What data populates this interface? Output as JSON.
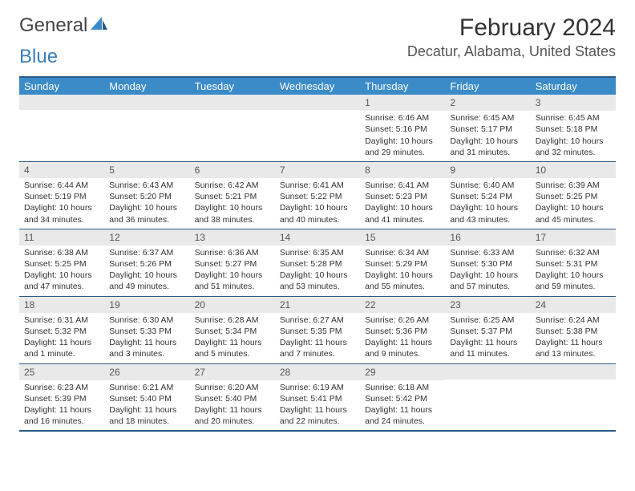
{
  "logo": {
    "text1": "General",
    "text2": "Blue"
  },
  "title": "February 2024",
  "location": "Decatur, Alabama, United States",
  "day_header_bg": "#3b8bc9",
  "day_header_border": "#2c5a85",
  "dayname_color": "#ffffff",
  "daynum_bg": "#e9e9e9",
  "days": [
    "Sunday",
    "Monday",
    "Tuesday",
    "Wednesday",
    "Thursday",
    "Friday",
    "Saturday"
  ],
  "weeks": [
    [
      {
        "num": "",
        "sunrise": "",
        "sunset": "",
        "daylight": ""
      },
      {
        "num": "",
        "sunrise": "",
        "sunset": "",
        "daylight": ""
      },
      {
        "num": "",
        "sunrise": "",
        "sunset": "",
        "daylight": ""
      },
      {
        "num": "",
        "sunrise": "",
        "sunset": "",
        "daylight": ""
      },
      {
        "num": "1",
        "sunrise": "Sunrise: 6:46 AM",
        "sunset": "Sunset: 5:16 PM",
        "daylight": "Daylight: 10 hours and 29 minutes."
      },
      {
        "num": "2",
        "sunrise": "Sunrise: 6:45 AM",
        "sunset": "Sunset: 5:17 PM",
        "daylight": "Daylight: 10 hours and 31 minutes."
      },
      {
        "num": "3",
        "sunrise": "Sunrise: 6:45 AM",
        "sunset": "Sunset: 5:18 PM",
        "daylight": "Daylight: 10 hours and 32 minutes."
      }
    ],
    [
      {
        "num": "4",
        "sunrise": "Sunrise: 6:44 AM",
        "sunset": "Sunset: 5:19 PM",
        "daylight": "Daylight: 10 hours and 34 minutes."
      },
      {
        "num": "5",
        "sunrise": "Sunrise: 6:43 AM",
        "sunset": "Sunset: 5:20 PM",
        "daylight": "Daylight: 10 hours and 36 minutes."
      },
      {
        "num": "6",
        "sunrise": "Sunrise: 6:42 AM",
        "sunset": "Sunset: 5:21 PM",
        "daylight": "Daylight: 10 hours and 38 minutes."
      },
      {
        "num": "7",
        "sunrise": "Sunrise: 6:41 AM",
        "sunset": "Sunset: 5:22 PM",
        "daylight": "Daylight: 10 hours and 40 minutes."
      },
      {
        "num": "8",
        "sunrise": "Sunrise: 6:41 AM",
        "sunset": "Sunset: 5:23 PM",
        "daylight": "Daylight: 10 hours and 41 minutes."
      },
      {
        "num": "9",
        "sunrise": "Sunrise: 6:40 AM",
        "sunset": "Sunset: 5:24 PM",
        "daylight": "Daylight: 10 hours and 43 minutes."
      },
      {
        "num": "10",
        "sunrise": "Sunrise: 6:39 AM",
        "sunset": "Sunset: 5:25 PM",
        "daylight": "Daylight: 10 hours and 45 minutes."
      }
    ],
    [
      {
        "num": "11",
        "sunrise": "Sunrise: 6:38 AM",
        "sunset": "Sunset: 5:25 PM",
        "daylight": "Daylight: 10 hours and 47 minutes."
      },
      {
        "num": "12",
        "sunrise": "Sunrise: 6:37 AM",
        "sunset": "Sunset: 5:26 PM",
        "daylight": "Daylight: 10 hours and 49 minutes."
      },
      {
        "num": "13",
        "sunrise": "Sunrise: 6:36 AM",
        "sunset": "Sunset: 5:27 PM",
        "daylight": "Daylight: 10 hours and 51 minutes."
      },
      {
        "num": "14",
        "sunrise": "Sunrise: 6:35 AM",
        "sunset": "Sunset: 5:28 PM",
        "daylight": "Daylight: 10 hours and 53 minutes."
      },
      {
        "num": "15",
        "sunrise": "Sunrise: 6:34 AM",
        "sunset": "Sunset: 5:29 PM",
        "daylight": "Daylight: 10 hours and 55 minutes."
      },
      {
        "num": "16",
        "sunrise": "Sunrise: 6:33 AM",
        "sunset": "Sunset: 5:30 PM",
        "daylight": "Daylight: 10 hours and 57 minutes."
      },
      {
        "num": "17",
        "sunrise": "Sunrise: 6:32 AM",
        "sunset": "Sunset: 5:31 PM",
        "daylight": "Daylight: 10 hours and 59 minutes."
      }
    ],
    [
      {
        "num": "18",
        "sunrise": "Sunrise: 6:31 AM",
        "sunset": "Sunset: 5:32 PM",
        "daylight": "Daylight: 11 hours and 1 minute."
      },
      {
        "num": "19",
        "sunrise": "Sunrise: 6:30 AM",
        "sunset": "Sunset: 5:33 PM",
        "daylight": "Daylight: 11 hours and 3 minutes."
      },
      {
        "num": "20",
        "sunrise": "Sunrise: 6:28 AM",
        "sunset": "Sunset: 5:34 PM",
        "daylight": "Daylight: 11 hours and 5 minutes."
      },
      {
        "num": "21",
        "sunrise": "Sunrise: 6:27 AM",
        "sunset": "Sunset: 5:35 PM",
        "daylight": "Daylight: 11 hours and 7 minutes."
      },
      {
        "num": "22",
        "sunrise": "Sunrise: 6:26 AM",
        "sunset": "Sunset: 5:36 PM",
        "daylight": "Daylight: 11 hours and 9 minutes."
      },
      {
        "num": "23",
        "sunrise": "Sunrise: 6:25 AM",
        "sunset": "Sunset: 5:37 PM",
        "daylight": "Daylight: 11 hours and 11 minutes."
      },
      {
        "num": "24",
        "sunrise": "Sunrise: 6:24 AM",
        "sunset": "Sunset: 5:38 PM",
        "daylight": "Daylight: 11 hours and 13 minutes."
      }
    ],
    [
      {
        "num": "25",
        "sunrise": "Sunrise: 6:23 AM",
        "sunset": "Sunset: 5:39 PM",
        "daylight": "Daylight: 11 hours and 16 minutes."
      },
      {
        "num": "26",
        "sunrise": "Sunrise: 6:21 AM",
        "sunset": "Sunset: 5:40 PM",
        "daylight": "Daylight: 11 hours and 18 minutes."
      },
      {
        "num": "27",
        "sunrise": "Sunrise: 6:20 AM",
        "sunset": "Sunset: 5:40 PM",
        "daylight": "Daylight: 11 hours and 20 minutes."
      },
      {
        "num": "28",
        "sunrise": "Sunrise: 6:19 AM",
        "sunset": "Sunset: 5:41 PM",
        "daylight": "Daylight: 11 hours and 22 minutes."
      },
      {
        "num": "29",
        "sunrise": "Sunrise: 6:18 AM",
        "sunset": "Sunset: 5:42 PM",
        "daylight": "Daylight: 11 hours and 24 minutes."
      },
      {
        "num": "",
        "sunrise": "",
        "sunset": "",
        "daylight": ""
      },
      {
        "num": "",
        "sunrise": "",
        "sunset": "",
        "daylight": ""
      }
    ]
  ]
}
